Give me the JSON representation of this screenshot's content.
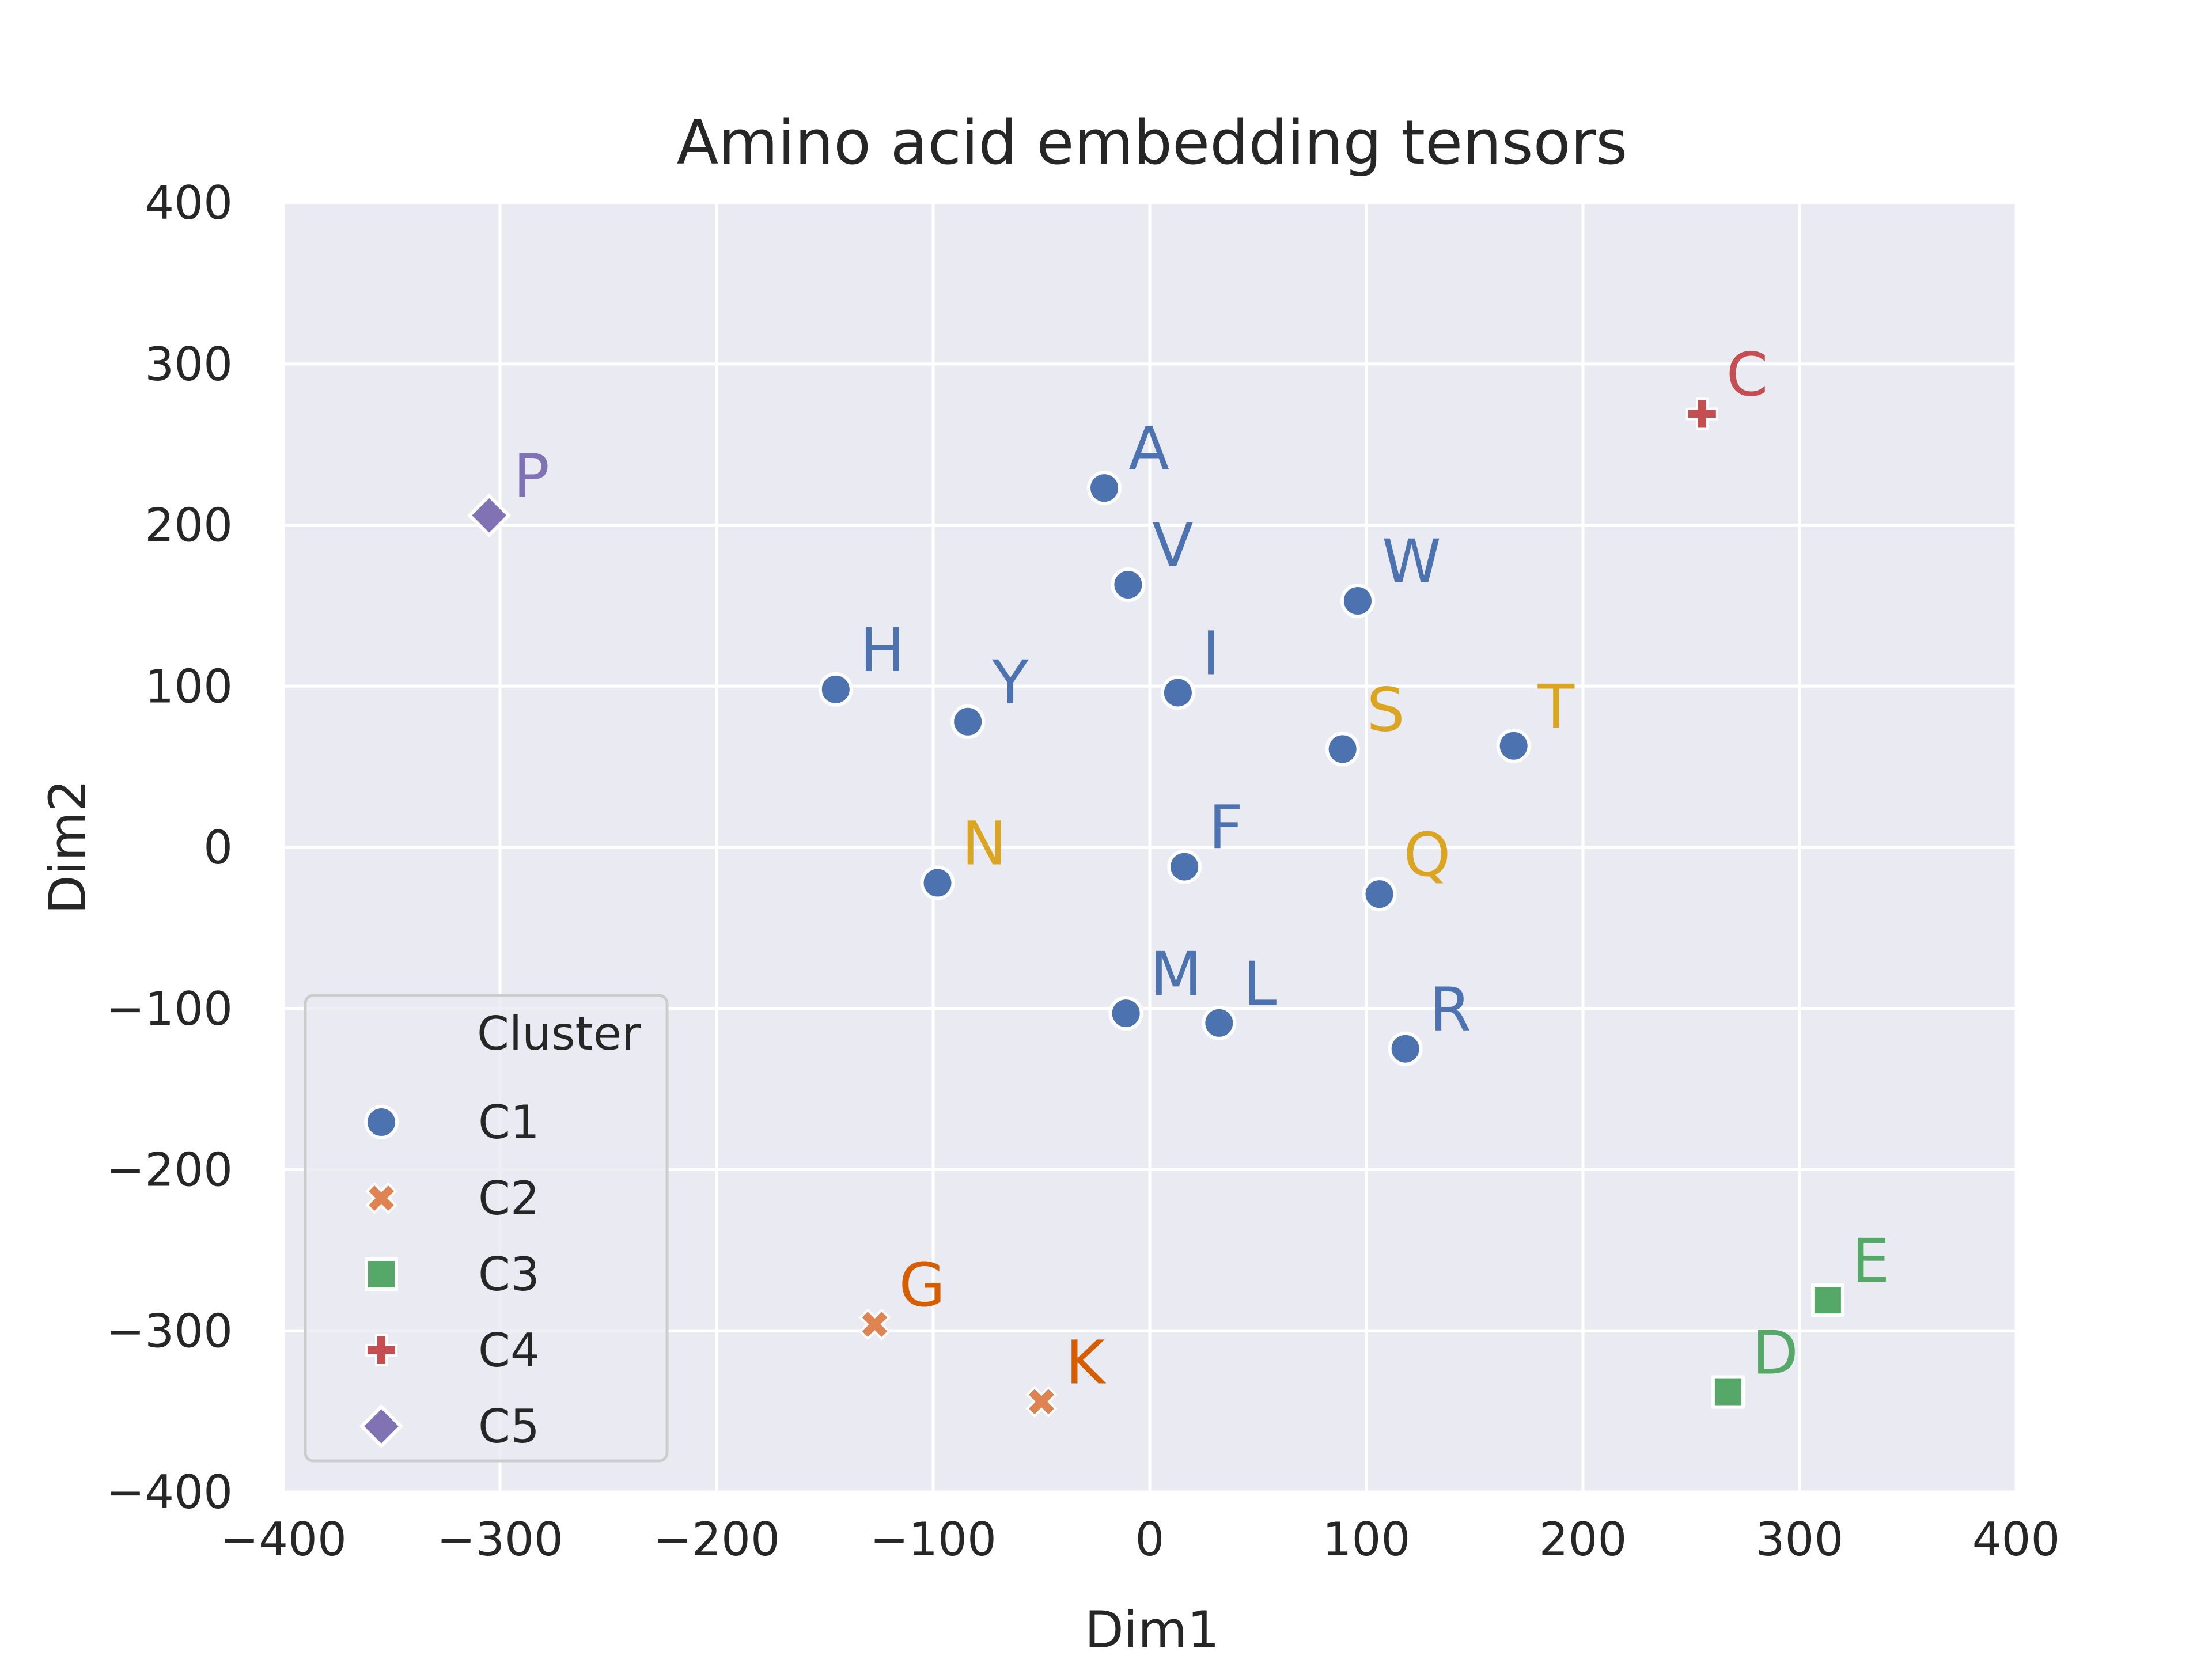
{
  "colors": {
    "background": "#ffffff",
    "plot_bg": "#eaeaf2",
    "grid": "#ffffff",
    "text": "#262626",
    "C1": "#4c72b0",
    "C2": "#dd8452",
    "C3": "#55a868",
    "C4": "#c44e52",
    "C5": "#8172b3",
    "label_orange": "#d55e00",
    "label_gold": "#daa520"
  },
  "chart_data": {
    "type": "scatter",
    "title": "Amino acid embedding tensors",
    "xlabel": "Dim1",
    "ylabel": "Dim2",
    "xlim": [
      -400,
      400
    ],
    "ylim": [
      -400,
      400
    ],
    "xticks": [
      -400,
      -300,
      -200,
      -100,
      0,
      100,
      200,
      300,
      400
    ],
    "yticks": [
      -400,
      -300,
      -200,
      -100,
      0,
      100,
      200,
      300,
      400
    ],
    "xtick_labels": [
      "−400",
      "−300",
      "−200",
      "−100",
      "0",
      "100",
      "200",
      "300",
      "400"
    ],
    "ytick_labels": [
      "−400",
      "−300",
      "−200",
      "−100",
      "0",
      "100",
      "200",
      "300",
      "400"
    ],
    "grid": true,
    "legend": {
      "title": "Cluster",
      "placement": "lower-left",
      "entries": [
        {
          "label": "C1",
          "marker": "circle"
        },
        {
          "label": "C2",
          "marker": "x"
        },
        {
          "label": "C3",
          "marker": "square"
        },
        {
          "label": "C4",
          "marker": "plus"
        },
        {
          "label": "C5",
          "marker": "diamond"
        }
      ]
    },
    "points": [
      {
        "label": "A",
        "x": -21,
        "y": 223,
        "cluster": "C1",
        "label_color": "C1"
      },
      {
        "label": "V",
        "x": -10,
        "y": 163,
        "cluster": "C1",
        "label_color": "C1"
      },
      {
        "label": "W",
        "x": 96,
        "y": 153,
        "cluster": "C1",
        "label_color": "C1"
      },
      {
        "label": "H",
        "x": -145,
        "y": 98,
        "cluster": "C1",
        "label_color": "C1"
      },
      {
        "label": "Y",
        "x": -84,
        "y": 78,
        "cluster": "C1",
        "label_color": "C1"
      },
      {
        "label": "I",
        "x": 13,
        "y": 96,
        "cluster": "C1",
        "label_color": "C1"
      },
      {
        "label": "S",
        "x": 89,
        "y": 61,
        "cluster": "C1",
        "label_color": "label_gold"
      },
      {
        "label": "T",
        "x": 168,
        "y": 63,
        "cluster": "C1",
        "label_color": "label_gold"
      },
      {
        "label": "N",
        "x": -98,
        "y": -22,
        "cluster": "C1",
        "label_color": "label_gold"
      },
      {
        "label": "F",
        "x": 16,
        "y": -12,
        "cluster": "C1",
        "label_color": "C1"
      },
      {
        "label": "Q",
        "x": 106,
        "y": -29,
        "cluster": "C1",
        "label_color": "label_gold"
      },
      {
        "label": "M",
        "x": -11,
        "y": -103,
        "cluster": "C1",
        "label_color": "C1"
      },
      {
        "label": "L",
        "x": 32,
        "y": -109,
        "cluster": "C1",
        "label_color": "C1"
      },
      {
        "label": "R",
        "x": 118,
        "y": -125,
        "cluster": "C1",
        "label_color": "C1"
      },
      {
        "label": "G",
        "x": -127,
        "y": -296,
        "cluster": "C2",
        "label_color": "label_orange"
      },
      {
        "label": "K",
        "x": -50,
        "y": -344,
        "cluster": "C2",
        "label_color": "label_orange"
      },
      {
        "label": "E",
        "x": 313,
        "y": -281,
        "cluster": "C3",
        "label_color": "C3"
      },
      {
        "label": "D",
        "x": 267,
        "y": -338,
        "cluster": "C3",
        "label_color": "C3"
      },
      {
        "label": "C",
        "x": 255,
        "y": 269,
        "cluster": "C4",
        "label_color": "C4"
      },
      {
        "label": "P",
        "x": -305,
        "y": 206,
        "cluster": "C5",
        "label_color": "C5"
      }
    ]
  }
}
